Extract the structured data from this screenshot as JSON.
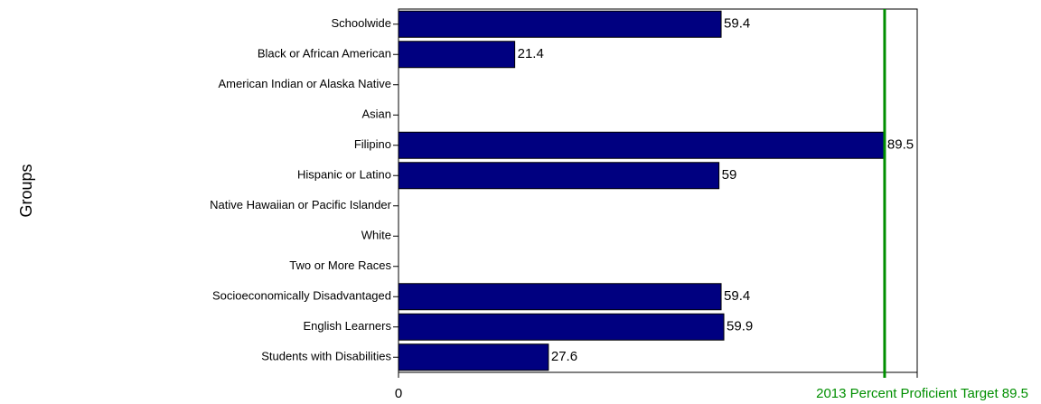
{
  "chart_data": {
    "type": "hbar",
    "ylabel": "Groups",
    "categories": [
      "Schoolwide",
      "Black or African American",
      "American Indian or Alaska Native",
      "Asian",
      "Filipino",
      "Hispanic or Latino",
      "Native Hawaiian or Pacific Islander",
      "White",
      "Two or More Races",
      "Socioeconomically Disadvantaged",
      "English Learners",
      "Students with Disabilities"
    ],
    "values": [
      59.4,
      21.4,
      null,
      null,
      89.5,
      59,
      null,
      null,
      null,
      59.4,
      59.9,
      27.6
    ],
    "color": "#000080",
    "xlim": [
      0,
      95.5
    ],
    "xticks": [
      0
    ],
    "target": 89.5,
    "target_label": "2013 Percent Proficient Target 89.5",
    "target_color": "#008f00"
  }
}
